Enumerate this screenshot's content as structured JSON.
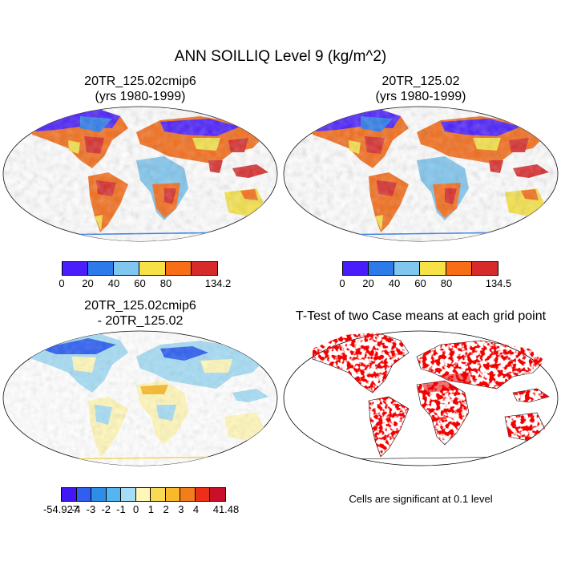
{
  "figure": {
    "title": "ANN SOILLIQ Level 9 (kg/m^2)",
    "panels": [
      {
        "title_line1": "20TR_125.02cmip6",
        "title_line2": "(yrs 1980-1999)",
        "colorbar": {
          "colors": [
            "#4a1efc",
            "#2d7bea",
            "#80c6ee",
            "#f6e247",
            "#f76e16",
            "#d72b2b"
          ],
          "labels": [
            "0",
            "20",
            "40",
            "60",
            "80",
            "134.2"
          ]
        }
      },
      {
        "title_line1": "20TR_125.02",
        "title_line2": "(yrs 1980-1999)",
        "colorbar": {
          "colors": [
            "#4a1efc",
            "#2d7bea",
            "#80c6ee",
            "#f6e247",
            "#f76e16",
            "#d72b2b"
          ],
          "labels": [
            "0",
            "20",
            "40",
            "60",
            "80",
            "134.5"
          ]
        }
      },
      {
        "title_line1": "20TR_125.02cmip6",
        "title_line2": "- 20TR_125.02",
        "colorbar": {
          "colors": [
            "#4118f5",
            "#2f5ff0",
            "#2e8de9",
            "#53b6f1",
            "#a6dcf4",
            "#fff7ba",
            "#f8da55",
            "#f8b92a",
            "#f37c1c",
            "#ec3018",
            "#c8102a"
          ],
          "labels": [
            "-54.927",
            "-4",
            "-3",
            "-2",
            "-1",
            "0",
            "1",
            "2",
            "3",
            "4",
            "41.48"
          ]
        }
      },
      {
        "title": "T-Test of two Case means at each grid point",
        "note": "Cells are significant at 0.1 level"
      }
    ]
  }
}
